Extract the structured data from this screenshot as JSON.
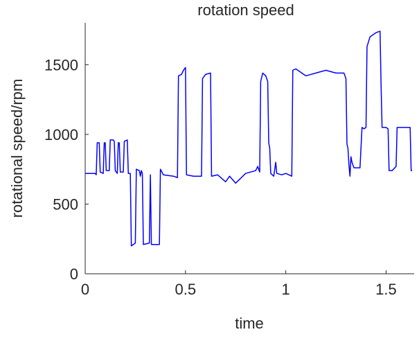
{
  "chart_data": {
    "type": "line",
    "title": "rotation speed",
    "x_label": "time",
    "y_label": "rotational speed/rpm",
    "series": [
      {
        "name": "rotation speed",
        "color": "#0000ff",
        "x": [
          0,
          0.05,
          0.055,
          0.06,
          0.07,
          0.075,
          0.09,
          0.095,
          0.1,
          0.105,
          0.12,
          0.125,
          0.14,
          0.145,
          0.15,
          0.16,
          0.165,
          0.17,
          0.175,
          0.19,
          0.195,
          0.21,
          0.215,
          0.225,
          0.23,
          0.25,
          0.255,
          0.27,
          0.275,
          0.28,
          0.285,
          0.29,
          0.32,
          0.325,
          0.33,
          0.37,
          0.375,
          0.39,
          0.44,
          0.46,
          0.465,
          0.48,
          0.49,
          0.5,
          0.505,
          0.54,
          0.58,
          0.585,
          0.6,
          0.625,
          0.63,
          0.66,
          0.7,
          0.72,
          0.75,
          0.8,
          0.85,
          0.86,
          0.87,
          0.875,
          0.885,
          0.9,
          0.91,
          0.915,
          0.92,
          0.925,
          0.94,
          0.95,
          0.955,
          0.98,
          1.0,
          1.03,
          1.035,
          1.05,
          1.1,
          1.15,
          1.2,
          1.25,
          1.29,
          1.3,
          1.305,
          1.31,
          1.315,
          1.32,
          1.325,
          1.33,
          1.34,
          1.35,
          1.37,
          1.38,
          1.39,
          1.4,
          1.405,
          1.42,
          1.45,
          1.47,
          1.475,
          1.48,
          1.5,
          1.51,
          1.515,
          1.53,
          1.55,
          1.555,
          1.6,
          1.62,
          1.625,
          1.63
        ],
        "values": [
          720,
          720,
          710,
          940,
          940,
          730,
          720,
          940,
          940,
          740,
          740,
          960,
          960,
          950,
          740,
          720,
          940,
          940,
          730,
          730,
          950,
          960,
          720,
          720,
          200,
          220,
          750,
          740,
          700,
          740,
          720,
          210,
          220,
          710,
          210,
          210,
          750,
          710,
          700,
          690,
          1420,
          1430,
          1460,
          1480,
          710,
          700,
          700,
          1400,
          1430,
          1440,
          700,
          710,
          660,
          700,
          650,
          720,
          740,
          770,
          730,
          1380,
          1440,
          1420,
          1380,
          940,
          900,
          720,
          700,
          800,
          720,
          710,
          720,
          700,
          1460,
          1470,
          1420,
          1440,
          1460,
          1440,
          1440,
          1400,
          930,
          900,
          780,
          700,
          840,
          800,
          760,
          760,
          760,
          1050,
          1040,
          1050,
          1630,
          1700,
          1730,
          1740,
          1360,
          1050,
          1050,
          1040,
          740,
          740,
          770,
          1050,
          1050,
          1050,
          740,
          740
        ]
      }
    ],
    "xlim": [
      0,
      1.64
    ],
    "xticks": [
      0,
      0.5,
      1,
      1.5
    ],
    "ylim": [
      0,
      1800
    ],
    "yticks": [
      0,
      500,
      1000,
      1500
    ]
  }
}
